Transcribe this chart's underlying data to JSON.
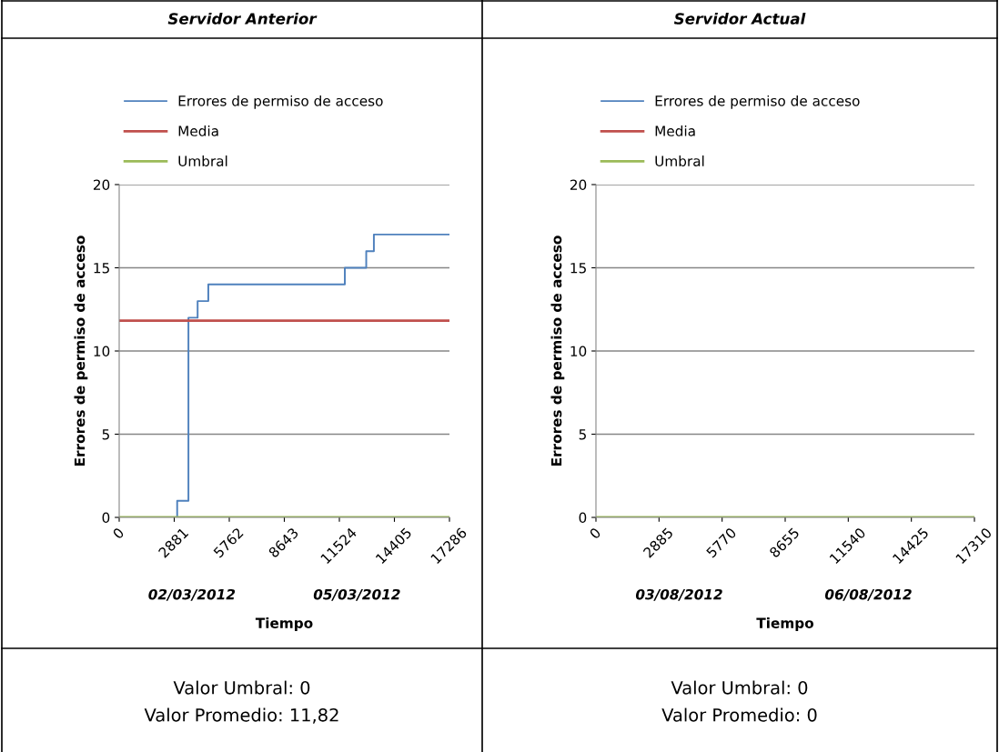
{
  "chart_data": [
    {
      "type": "line",
      "title": "Servidor Anterior",
      "xlabel": "Tiempo",
      "ylabel": "Errores de permiso de acceso",
      "xlim": [
        0,
        17286
      ],
      "xticks": [
        0,
        2881,
        5762,
        8643,
        11524,
        14405,
        17286
      ],
      "ylim": [
        0,
        20
      ],
      "yticks": [
        0,
        5,
        10,
        15,
        20
      ],
      "grid": "y",
      "legend": "top left",
      "marker": "none",
      "line_style": "solid",
      "series": [
        {
          "name": "Errores de permiso de acceso",
          "type": "step",
          "color": "#4f81bd",
          "x": [
            0,
            3035,
            3625,
            4105,
            4665,
            11810,
            12930,
            13330,
            17286
          ],
          "values": [
            0,
            1,
            12,
            13,
            14,
            15,
            16,
            17,
            17
          ]
        },
        {
          "name": "Media",
          "color": "#c0504d",
          "x": [
            0,
            17286
          ],
          "values": [
            11.82,
            11.82
          ]
        },
        {
          "name": "Umbral",
          "color": "#9bbb59",
          "x": [
            0,
            17286
          ],
          "values": [
            0,
            0
          ]
        }
      ],
      "annotations": [
        "02/03/2012",
        "05/03/2012",
        "Valor Umbral: 0",
        "Valor Promedio: 11,82"
      ]
    },
    {
      "type": "line",
      "title": "Servidor Actual",
      "xlabel": "Tiempo",
      "ylabel": "Errores de permiso de acceso",
      "xlim": [
        0,
        17310
      ],
      "xticks": [
        0,
        2885,
        5770,
        8655,
        11540,
        14425,
        17310
      ],
      "ylim": [
        0,
        20
      ],
      "yticks": [
        0,
        5,
        10,
        15,
        20
      ],
      "grid": "y",
      "legend": "top left",
      "marker": "none",
      "line_style": "solid",
      "x": [
        0,
        17310
      ],
      "series": [
        {
          "name": "Errores de permiso de acceso",
          "type": "step",
          "color": "#4f81bd",
          "values": [
            null,
            null
          ]
        },
        {
          "name": "Media",
          "color": "#c0504d",
          "values": [
            null,
            null
          ]
        },
        {
          "name": "Umbral",
          "color": "#9bbb59",
          "values": [
            0,
            0
          ]
        }
      ],
      "annotations": [
        "03/08/2012",
        "06/08/2012",
        "Valor Umbral: 0",
        "Valor Promedio: 0"
      ]
    }
  ]
}
